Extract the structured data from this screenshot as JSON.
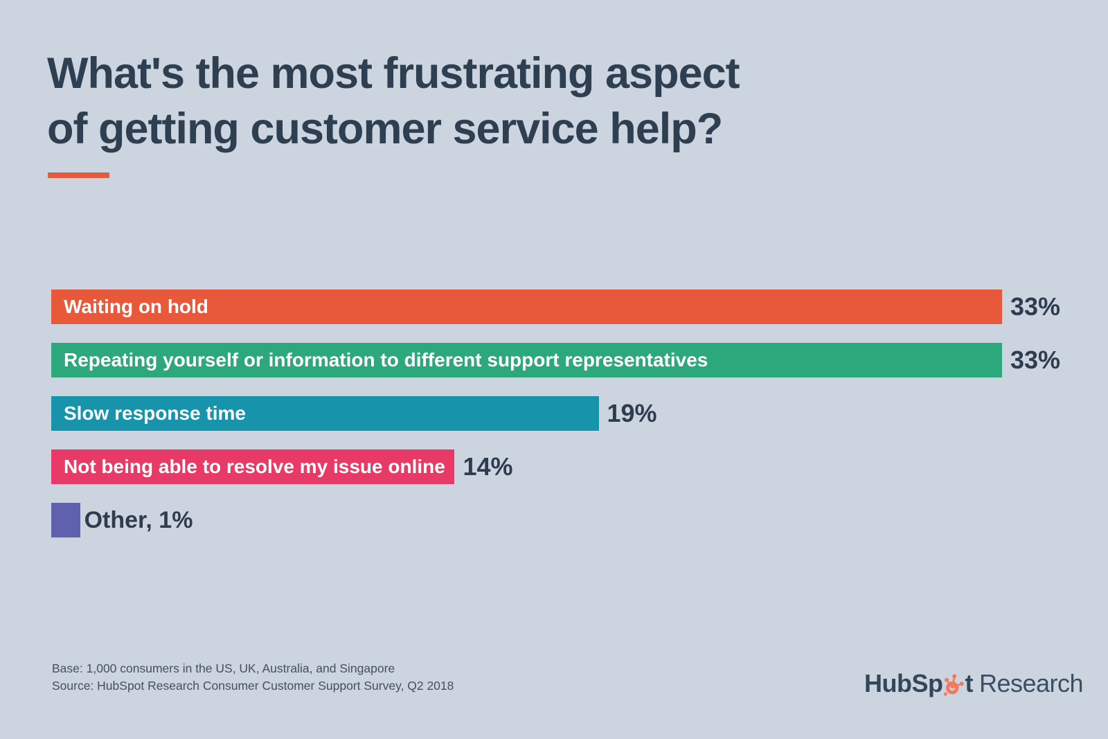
{
  "background_color": "#ccd5df",
  "accent_color": "#e8583a",
  "title": "What's the most frustrating aspect\nof getting customer service help?",
  "chart_data": {
    "type": "bar",
    "orientation": "horizontal",
    "title": "What's the most frustrating aspect of getting customer service help?",
    "xlabel": "",
    "ylabel": "",
    "xlim": [
      0,
      33
    ],
    "grid": false,
    "legend": "none",
    "categories": [
      "Waiting on hold",
      "Repeating yourself or information to different support representatives",
      "Slow response time",
      "Not being able to resolve my issue online",
      "Other"
    ],
    "values": [
      33,
      33,
      19,
      14,
      1
    ],
    "bars": [
      {
        "label": "Waiting on hold",
        "value": 33,
        "value_label": "33%",
        "color": "#e8583a",
        "label_inside": true
      },
      {
        "label": "Repeating yourself or information to different support representatives",
        "value": 33,
        "value_label": "33%",
        "color": "#2da87d",
        "label_inside": true
      },
      {
        "label": "Slow response time",
        "value": 19,
        "value_label": "19%",
        "color": "#1793ab",
        "label_inside": true
      },
      {
        "label": "Not being able to resolve my issue online",
        "value": 14,
        "value_label": "14%",
        "color": "#e93a67",
        "label_inside": true
      },
      {
        "label": "Other",
        "value": 1,
        "value_label": "Other, 1%",
        "color": "#5f61ae",
        "label_inside": false
      }
    ]
  },
  "footer": {
    "base": "Base: 1,000 consumers in the US, UK, Australia, and Singapore",
    "source": "Source: HubSpot Research Consumer Customer Support Survey, Q2 2018"
  },
  "logo": {
    "part_before_sprocket": "HubSp",
    "part_after_sprocket": "t",
    "suffix": "Research",
    "text_color": "#33475b",
    "sprocket_color": "#f3795c"
  }
}
